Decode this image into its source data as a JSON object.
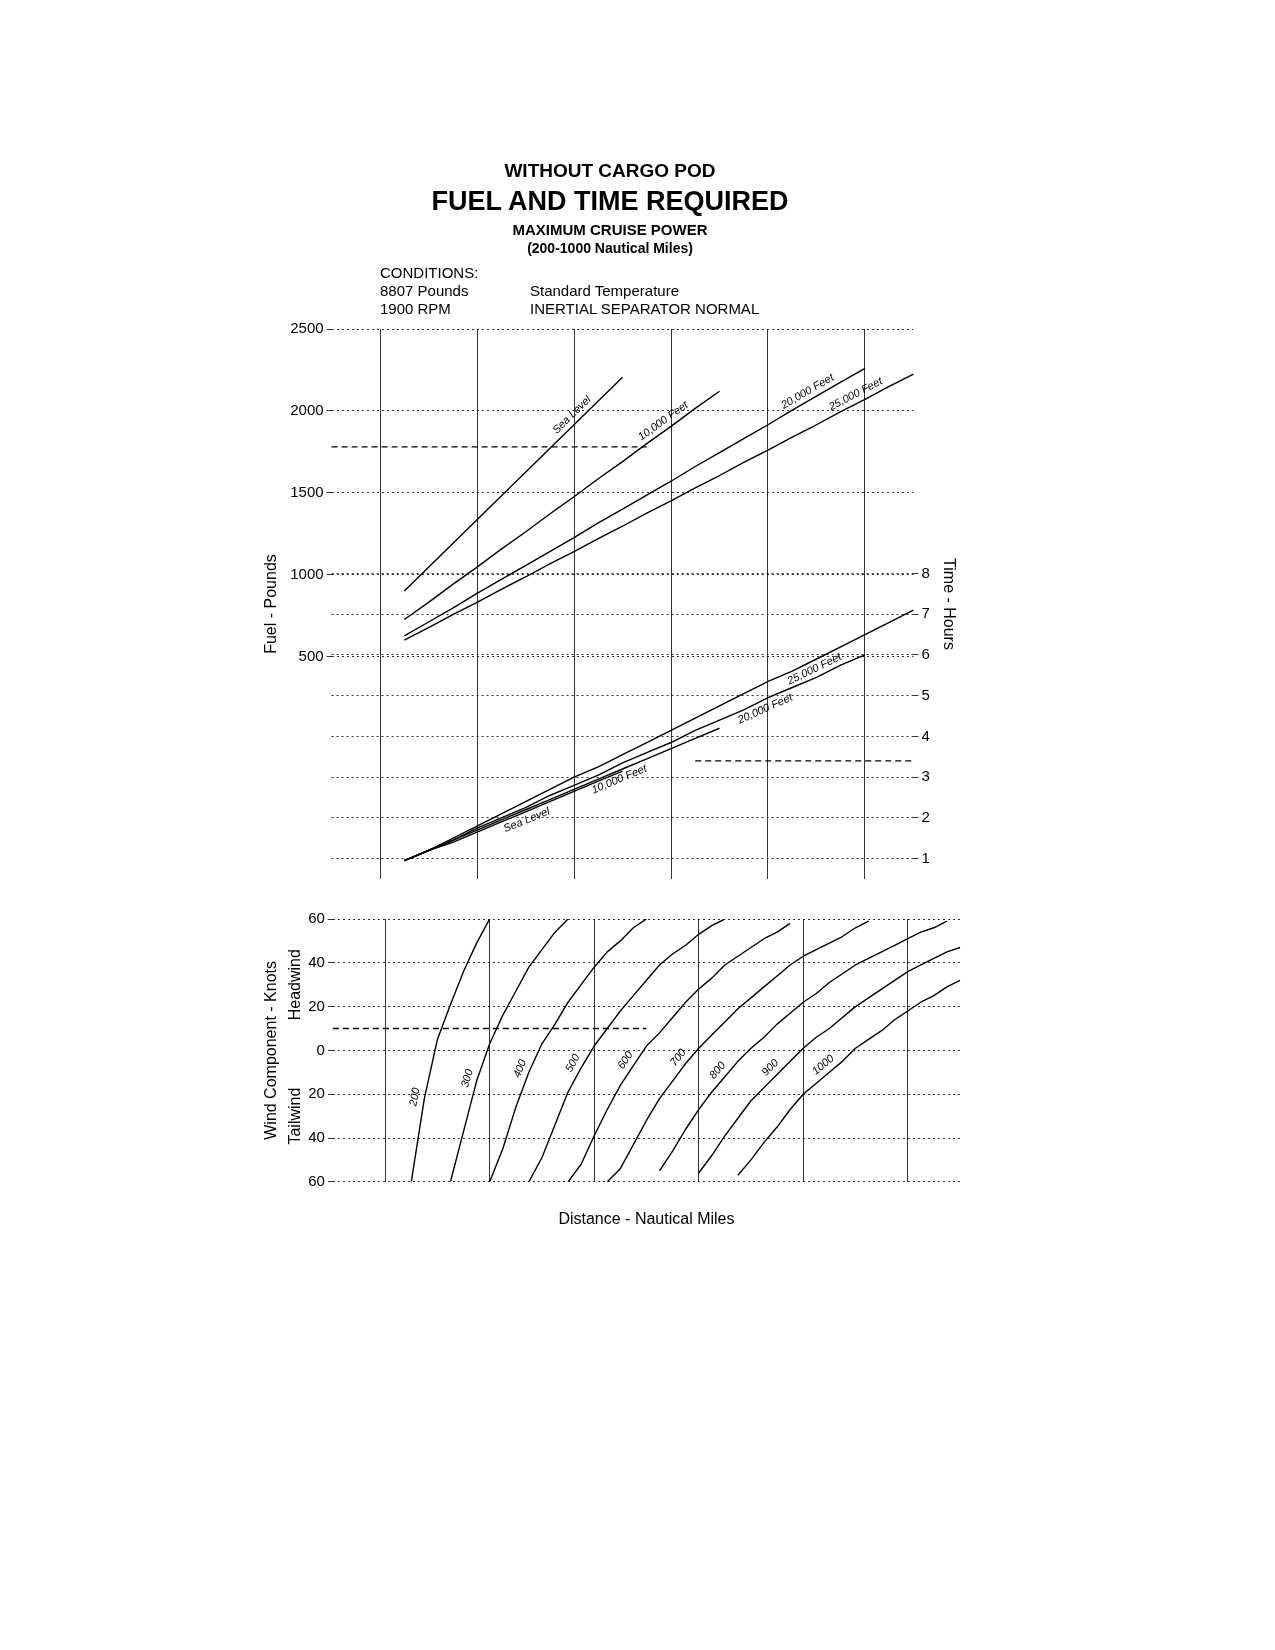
{
  "chart_data": [
    {
      "type": "line",
      "title": "FUEL AND TIME REQUIRED",
      "subtitle": "MAXIMUM CRUISE POWER",
      "annotations": [
        "WITHOUT CARGO POD",
        "(200-1000 Nautical Miles)",
        "CONDITIONS:",
        "8807 Pounds",
        "Standard Temperature",
        "1900 RPM",
        "INERTIAL SEPARATOR NORMAL"
      ],
      "ylabel": "Fuel - Pounds",
      "y2label": "Time - Hours",
      "categories": [
        null,
        null,
        null,
        null,
        null,
        null,
        null,
        null,
        null,
        null,
        null,
        null,
        null,
        null,
        null,
        null,
        null,
        null,
        null,
        null,
        null,
        null,
        null,
        null,
        null
      ],
      "ylim": [
        -860,
        2500
      ],
      "yticks": [
        500,
        1000,
        1500,
        2000,
        2500
      ],
      "y2lim": [
        0.5,
        14
      ],
      "y2ticks": [
        1,
        2,
        3,
        4,
        5,
        6,
        7,
        8
      ],
      "grid": true,
      "legend": false,
      "marker": "none",
      "line_style": "solid",
      "series": [
        {
          "name": "Sea Level",
          "color": "#000000",
          "values": [
            null,
            null,
            null,
            900,
            1045,
            1190,
            1335,
            1480,
            1625,
            1770,
            1915,
            2060,
            2205,
            null,
            null,
            null,
            null,
            null,
            null,
            null,
            null,
            null,
            null,
            null,
            null
          ]
        },
        {
          "name": "10,000 Feet",
          "color": "#000000",
          "values": [
            null,
            null,
            null,
            725,
            830,
            940,
            1045,
            1155,
            1260,
            1370,
            1475,
            1585,
            1690,
            1800,
            1905,
            2015,
            2120,
            null,
            null,
            null,
            null,
            null,
            null,
            null,
            null
          ]
        },
        {
          "name": "20,000 Feet",
          "color": "#000000",
          "values": [
            null,
            null,
            null,
            625,
            710,
            795,
            885,
            970,
            1055,
            1140,
            1225,
            1315,
            1400,
            1485,
            1570,
            1660,
            1745,
            1830,
            1915,
            2005,
            2090,
            2175,
            2260,
            null,
            null
          ]
        },
        {
          "name": "25,000 Feet",
          "color": "#000000",
          "values": [
            null,
            null,
            null,
            600,
            675,
            755,
            830,
            910,
            985,
            1065,
            1140,
            1220,
            1295,
            1375,
            1450,
            1530,
            1605,
            1685,
            1760,
            1840,
            1915,
            1995,
            2070,
            2150,
            2225
          ]
        },
        {
          "name": "Sea Level",
          "color": "#000000",
          "axis": "y2",
          "values": [
            null,
            null,
            null,
            0.95,
            1.2,
            1.4,
            1.65,
            1.9,
            2.15,
            2.4,
            2.65,
            2.9,
            3.15,
            null,
            null,
            null,
            null,
            null,
            null,
            null,
            null,
            null,
            null,
            null,
            null
          ]
        },
        {
          "name": "10,000 Feet",
          "color": "#000000",
          "axis": "y2",
          "values": [
            null,
            null,
            null,
            0.95,
            1.2,
            1.45,
            1.7,
            1.95,
            2.2,
            2.45,
            2.7,
            2.95,
            3.2,
            3.45,
            3.7,
            3.95,
            4.2,
            null,
            null,
            null,
            null,
            null,
            null,
            null,
            null
          ]
        },
        {
          "name": "20,000 Feet",
          "color": "#000000",
          "axis": "y2",
          "values": [
            null,
            null,
            null,
            0.95,
            1.2,
            1.45,
            1.75,
            2,
            2.25,
            2.55,
            2.8,
            3.05,
            3.35,
            3.6,
            3.85,
            4.15,
            4.4,
            4.65,
            4.95,
            5.2,
            5.45,
            5.75,
            6,
            null,
            null
          ]
        },
        {
          "name": "25,000 Feet",
          "color": "#000000",
          "axis": "y2",
          "values": [
            null,
            null,
            null,
            0.95,
            1.2,
            1.5,
            1.8,
            2.1,
            2.4,
            2.7,
            3,
            3.25,
            3.55,
            3.85,
            4.15,
            4.45,
            4.75,
            5.05,
            5.35,
            5.6,
            5.9,
            6.2,
            6.5,
            6.8,
            7.1
          ]
        },
        {
          "color": "#000000",
          "line_style": "dashed",
          "values": [
            1780,
            1780,
            1780,
            1780,
            1780,
            1780,
            1780,
            1780,
            1780,
            1780,
            1780,
            1780,
            1780,
            1780,
            null,
            null,
            null,
            null,
            null,
            null,
            null,
            null,
            null,
            null,
            null
          ]
        },
        {
          "color": "#000000",
          "line_style": "dashed",
          "axis": "y2",
          "values": [
            null,
            null,
            null,
            null,
            null,
            null,
            null,
            null,
            null,
            null,
            null,
            null,
            null,
            null,
            null,
            3.4,
            3.4,
            3.4,
            3.4,
            3.4,
            3.4,
            3.4,
            3.4,
            3.4,
            3.4
          ]
        }
      ]
    },
    {
      "type": "line",
      "xlabel": "Distance - Nautical Miles",
      "ylabel": "Wind Component - Knots",
      "annotations": [
        "Headwind",
        "Tailwind"
      ],
      "categories": [
        null,
        null,
        null,
        null,
        null,
        null,
        null,
        null,
        null,
        null,
        null,
        null,
        null,
        null,
        null,
        null,
        null,
        null,
        null,
        null,
        null,
        null,
        null,
        null,
        null,
        null,
        null,
        null,
        null,
        null,
        null,
        null,
        null,
        null,
        null,
        null,
        null,
        null,
        null,
        null,
        null,
        null,
        null,
        null,
        null,
        null,
        null,
        null,
        null
      ],
      "ylim": [
        -60,
        60
      ],
      "yticks": [
        {
          "value": 60,
          "label": "60"
        },
        {
          "value": 40,
          "label": "40"
        },
        {
          "value": 20,
          "label": "20"
        },
        {
          "value": 0,
          "label": "0"
        },
        {
          "value": -20,
          "label": "20"
        },
        {
          "value": -40,
          "label": "40"
        },
        {
          "value": -60,
          "label": "60"
        }
      ],
      "grid": true,
      "legend": false,
      "marker": "none",
      "line_style": "solid",
      "series": [
        {
          "name": "200",
          "color": "#000000",
          "values": [
            null,
            null,
            null,
            null,
            null,
            null,
            -60,
            -22,
            5,
            21,
            36,
            49,
            60,
            null,
            null,
            null,
            null,
            null,
            null,
            null,
            null,
            null,
            null,
            null,
            null,
            null,
            null,
            null,
            null,
            null,
            null,
            null,
            null,
            null,
            null,
            null,
            null,
            null,
            null,
            null,
            null,
            null,
            null,
            null,
            null,
            null,
            null,
            null,
            null
          ]
        },
        {
          "name": "300",
          "color": "#000000",
          "values": [
            null,
            null,
            null,
            null,
            null,
            null,
            null,
            null,
            null,
            -60,
            -37,
            -14,
            3,
            16,
            27,
            38,
            46,
            54,
            60,
            null,
            null,
            null,
            null,
            null,
            null,
            null,
            null,
            null,
            null,
            null,
            null,
            null,
            null,
            null,
            null,
            null,
            null,
            null,
            null,
            null,
            null,
            null,
            null,
            null,
            null,
            null,
            null,
            null,
            null
          ]
        },
        {
          "name": "400",
          "color": "#000000",
          "values": [
            null,
            null,
            null,
            null,
            null,
            null,
            null,
            null,
            null,
            null,
            null,
            null,
            -60,
            -45,
            -26,
            -10,
            3,
            12,
            22,
            30,
            38,
            45,
            50,
            56,
            60,
            null,
            null,
            null,
            null,
            null,
            null,
            null,
            null,
            null,
            null,
            null,
            null,
            null,
            null,
            null,
            null,
            null,
            null,
            null,
            null,
            null,
            null,
            null,
            null
          ]
        },
        {
          "name": "500",
          "color": "#000000",
          "values": [
            null,
            null,
            null,
            null,
            null,
            null,
            null,
            null,
            null,
            null,
            null,
            null,
            null,
            null,
            null,
            -60,
            -49,
            -34,
            -19,
            -8,
            2,
            10,
            18,
            25,
            32,
            39,
            44,
            48,
            53,
            57,
            60,
            null,
            null,
            null,
            null,
            null,
            null,
            null,
            null,
            null,
            null,
            null,
            null,
            null,
            null,
            null,
            null,
            null,
            null
          ]
        },
        {
          "name": "600",
          "color": "#000000",
          "values": [
            null,
            null,
            null,
            null,
            null,
            null,
            null,
            null,
            null,
            null,
            null,
            null,
            null,
            null,
            null,
            null,
            null,
            null,
            -60,
            -52,
            -39,
            -27,
            -16,
            -7,
            2,
            8,
            15,
            22,
            28,
            33,
            39,
            43,
            47,
            51,
            54,
            58,
            null,
            null,
            null,
            null,
            null,
            null,
            null,
            null,
            null,
            null,
            null,
            null,
            null
          ]
        },
        {
          "name": "700",
          "color": "#000000",
          "values": [
            null,
            null,
            null,
            null,
            null,
            null,
            null,
            null,
            null,
            null,
            null,
            null,
            null,
            null,
            null,
            null,
            null,
            null,
            null,
            null,
            null,
            -60,
            -54,
            -43,
            -32,
            -22,
            -14,
            -6,
            1,
            7,
            13,
            19,
            24,
            29,
            34,
            39,
            43,
            46,
            49,
            52,
            56,
            59,
            null,
            null,
            null,
            null,
            null,
            null,
            null
          ]
        },
        {
          "name": "800",
          "color": "#000000",
          "values": [
            null,
            null,
            null,
            null,
            null,
            null,
            null,
            null,
            null,
            null,
            null,
            null,
            null,
            null,
            null,
            null,
            null,
            null,
            null,
            null,
            null,
            null,
            null,
            null,
            null,
            -55,
            -46,
            -36,
            -27,
            -19,
            -12,
            -5,
            1,
            6,
            12,
            17,
            22,
            26,
            31,
            35,
            39,
            42,
            45,
            48,
            51,
            54,
            56,
            59,
            null
          ]
        },
        {
          "name": "900",
          "color": "#000000",
          "values": [
            null,
            null,
            null,
            null,
            null,
            null,
            null,
            null,
            null,
            null,
            null,
            null,
            null,
            null,
            null,
            null,
            null,
            null,
            null,
            null,
            null,
            null,
            null,
            null,
            null,
            null,
            null,
            null,
            -56,
            -48,
            -39,
            -31,
            -23,
            -17,
            -11,
            -5,
            1,
            6,
            10,
            15,
            20,
            24,
            28,
            32,
            36,
            39,
            42,
            45,
            47
          ]
        },
        {
          "name": "1000",
          "color": "#000000",
          "values": [
            null,
            null,
            null,
            null,
            null,
            null,
            null,
            null,
            null,
            null,
            null,
            null,
            null,
            null,
            null,
            null,
            null,
            null,
            null,
            null,
            null,
            null,
            null,
            null,
            null,
            null,
            null,
            null,
            null,
            null,
            null,
            -57,
            -50,
            -42,
            -35,
            -27,
            -20,
            -15,
            -10,
            -5,
            1,
            5,
            9,
            14,
            18,
            22,
            25,
            29,
            32
          ]
        },
        {
          "color": "#000000",
          "line_style": "dashed",
          "values": [
            10,
            10,
            10,
            10,
            10,
            10,
            10,
            10,
            10,
            10,
            10,
            10,
            10,
            10,
            10,
            10,
            10,
            10,
            10,
            10,
            10,
            10,
            10,
            10,
            10,
            null,
            null,
            null,
            null,
            null,
            null,
            null,
            null,
            null,
            null,
            null,
            null,
            null,
            null,
            null,
            null,
            null,
            null,
            null,
            null,
            null,
            null,
            null,
            null
          ]
        }
      ]
    }
  ]
}
